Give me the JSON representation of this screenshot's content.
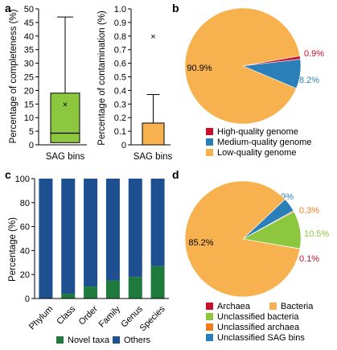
{
  "colors": {
    "green": "#8dc63f",
    "orange": "#f7b24f",
    "red": "#c8102e",
    "blue": "#2b7fb8",
    "navy": "#1d4f91",
    "dark_green": "#1f7a3d",
    "dark_orange": "#ef7d1a",
    "axis": "#000000"
  },
  "chart_data": [
    {
      "panel": "a",
      "type": "box",
      "ylabel": "Percentage of completeness (%)",
      "xlabel": "SAG bins",
      "ylim": [
        0,
        50
      ],
      "yticks": [
        0,
        5,
        10,
        15,
        20,
        25,
        30,
        35,
        40,
        45,
        50
      ],
      "box": {
        "min": 0,
        "q1": 0.8,
        "median": 4.3,
        "q3": 19,
        "max": 47,
        "mean": 15
      },
      "color": "#8dc63f"
    },
    {
      "panel": "a",
      "type": "bar",
      "ylabel": "Percentage of contamination (%)",
      "xlabel": "SAG bins",
      "ylim": [
        0,
        1.0
      ],
      "yticks": [
        "0",
        "0.1",
        "0.2",
        "0.3",
        "0.4",
        "0.5",
        "0.6",
        "0.7",
        "0.8",
        "0.9",
        "1.0"
      ],
      "bar": {
        "value": 0.16,
        "error_upper": 0.37,
        "outlier": 0.8
      },
      "color": "#f7b24f"
    },
    {
      "panel": "b",
      "type": "pie",
      "slices": [
        {
          "name": "High-quality genome",
          "value": 0.9,
          "label": "0.9%",
          "color": "#c8102e"
        },
        {
          "name": "Medium-quality genome",
          "value": 8.2,
          "label": "8.2%",
          "color": "#2b7fb8"
        },
        {
          "name": "Low-quality genome",
          "value": 90.9,
          "label": "90.9%",
          "color": "#f7b24f"
        }
      ]
    },
    {
      "panel": "c",
      "type": "bar",
      "stacked": true,
      "ylabel": "Percentage (%)",
      "ylim": [
        0,
        100
      ],
      "yticks": [
        0,
        20,
        40,
        60,
        80,
        100
      ],
      "categories": [
        "Phylum",
        "Class",
        "Order",
        "Family",
        "Genus",
        "Species"
      ],
      "series": [
        {
          "name": "Novel taxa",
          "values": [
            0,
            4,
            10,
            15,
            18,
            27
          ],
          "color": "#1f7a3d"
        },
        {
          "name": "Others",
          "values": [
            100,
            96,
            90,
            85,
            82,
            73
          ],
          "color": "#1d4f91"
        }
      ]
    },
    {
      "panel": "d",
      "type": "pie",
      "slices": [
        {
          "name": "Archaea",
          "value": 0.1,
          "label": "0.1%",
          "color": "#c8102e"
        },
        {
          "name": "Unclassified bacteria",
          "value": 10.5,
          "label": "10.5%",
          "color": "#8dc63f"
        },
        {
          "name": "Unclassified archaea",
          "value": 0.3,
          "label": "0.3%",
          "color": "#ef7d1a"
        },
        {
          "name": "Unclassified SAG bins",
          "value": 3.9,
          "label": "3.9%",
          "color": "#2b7fb8"
        },
        {
          "name": "Bacteria",
          "value": 85.2,
          "label": "85.2%",
          "color": "#f7b24f"
        }
      ]
    }
  ],
  "panel_labels": {
    "a": "a",
    "b": "b",
    "c": "c",
    "d": "d"
  },
  "legends": {
    "b": [
      "High-quality genome",
      "Medium-quality genome",
      "Low-quality genome"
    ],
    "c": [
      "Novel taxa",
      "Others"
    ],
    "d": [
      "Archaea",
      "Bacteria",
      "Unclassified bacteria",
      "Unclassified archaea",
      "Unclassified SAG bins"
    ]
  }
}
